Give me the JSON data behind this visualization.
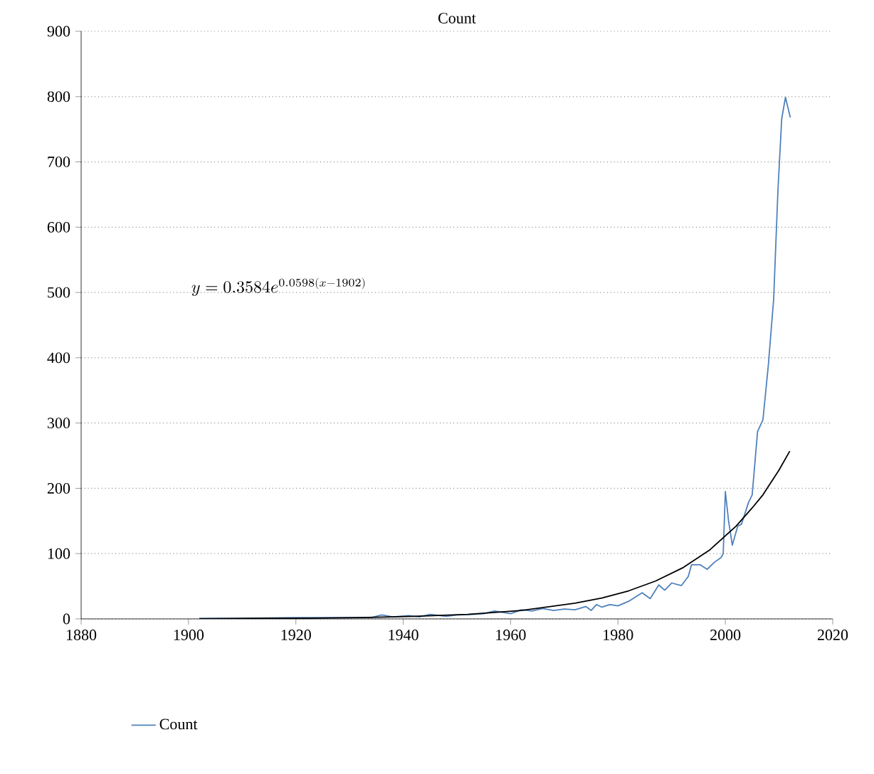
{
  "chart_data": {
    "type": "line",
    "title": "Count",
    "xlim": [
      1880,
      2020
    ],
    "xticks": [
      1880,
      1900,
      1920,
      1940,
      1960,
      1980,
      2000,
      2020
    ],
    "ylim": [
      0,
      900
    ],
    "yticks": [
      0,
      100,
      200,
      300,
      400,
      500,
      600,
      700,
      800,
      900
    ],
    "grid": "y",
    "legend": "bottom left",
    "marker": "none",
    "line_style": "solid",
    "annotations": [
      "y = 0.3584e^{0.0598(x-1902)}"
    ],
    "series": [
      {
        "name": "Count",
        "color": "#4f81bd",
        "x": [
          1902,
          1910,
          1920,
          1930,
          1934,
          1936,
          1938,
          1941,
          1943,
          1945,
          1948,
          1950,
          1953,
          1955,
          1957,
          1960,
          1962,
          1964,
          1966,
          1968,
          1970,
          1972,
          1974,
          1975,
          1976,
          1977,
          1978.5,
          1980,
          1982,
          1984.5,
          1986,
          1987.6,
          1988.7,
          1990,
          1991.8,
          1993.1,
          1993.7,
          1995.3,
          1996.6,
          1998,
          1999.2,
          1999.6,
          2000,
          2000.6,
          2001.3,
          2002.3,
          2003,
          2004.3,
          2005,
          2006,
          2007,
          2008,
          2009,
          2009.8,
          2010.5,
          2011.2,
          2012.1
        ],
        "values": [
          1,
          1,
          2,
          2,
          2,
          6,
          3,
          5,
          3,
          7,
          4,
          6,
          7,
          8,
          12,
          8,
          14,
          12,
          16,
          13,
          15,
          14,
          19,
          13,
          22,
          18,
          22,
          20,
          27,
          40,
          31,
          52,
          44,
          55,
          51,
          65,
          83,
          83,
          76,
          87,
          94,
          100,
          195,
          150,
          113,
          142,
          145,
          178,
          190,
          287,
          305,
          388,
          490,
          657,
          766,
          799,
          768
        ]
      },
      {
        "color": "#000000",
        "x": [
          1902,
          1912,
          1922,
          1932,
          1942,
          1952,
          1962,
          1972,
          1977,
          1982,
          1987,
          1992,
          1997,
          2002,
          2005,
          2007,
          2010,
          2012
        ],
        "values": [
          0,
          1,
          1,
          2,
          4,
          7,
          13,
          24,
          32,
          43,
          58,
          78,
          105,
          142,
          170,
          190,
          228,
          257
        ]
      }
    ]
  }
}
